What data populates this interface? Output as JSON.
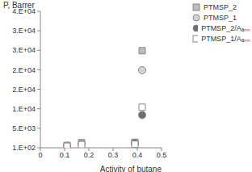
{
  "chart_data": {
    "type": "scatter",
    "y_label": "P, Barrer",
    "x_label": "Activity of butane",
    "xlim": [
      0,
      0.5
    ],
    "xticks": [
      0,
      0.1,
      0.2,
      0.3,
      0.4,
      0.5
    ],
    "ylim": [
      100,
      35100
    ],
    "yticks": [
      {
        "value": 100,
        "label": "1.E+02"
      },
      {
        "value": 5100,
        "label": "5.E+03"
      },
      {
        "value": 10100,
        "label": "1.E+04"
      },
      {
        "value": 15100,
        "label": "2.E+04"
      },
      {
        "value": 20100,
        "label": "2.E+04"
      },
      {
        "value": 25100,
        "label": "3.E+04"
      },
      {
        "value": 30100,
        "label": "3.E+04"
      },
      {
        "value": 35100,
        "label": "4.E+04"
      }
    ],
    "grid": false,
    "legend": "top-right",
    "series": [
      {
        "name": "PTMSP_2",
        "color": "#bdbdbd",
        "marker": "square",
        "x": [
          0.11,
          0.17,
          0.39,
          0.42
        ],
        "values": [
          700,
          1400,
          1500,
          25000
        ]
      },
      {
        "name": "PTMSP_1",
        "color": "#d4d4d4",
        "marker": "circle",
        "x": [
          0.11,
          0.17,
          0.39,
          0.42
        ],
        "values": [
          600,
          1100,
          1200,
          20000
        ]
      },
      {
        "name": "PTMSP_2/Aₐₙₙ",
        "color": "#6e6e6e",
        "marker": "circle",
        "x": [
          0.39,
          0.42
        ],
        "values": [
          1300,
          8500
        ]
      },
      {
        "name": "PTMSP_1/Aₐₙₙ",
        "color": "#ffffff",
        "marker": "square",
        "x": [
          0.11,
          0.17,
          0.39,
          0.42
        ],
        "values": [
          500,
          900,
          1000,
          10500
        ]
      }
    ]
  }
}
